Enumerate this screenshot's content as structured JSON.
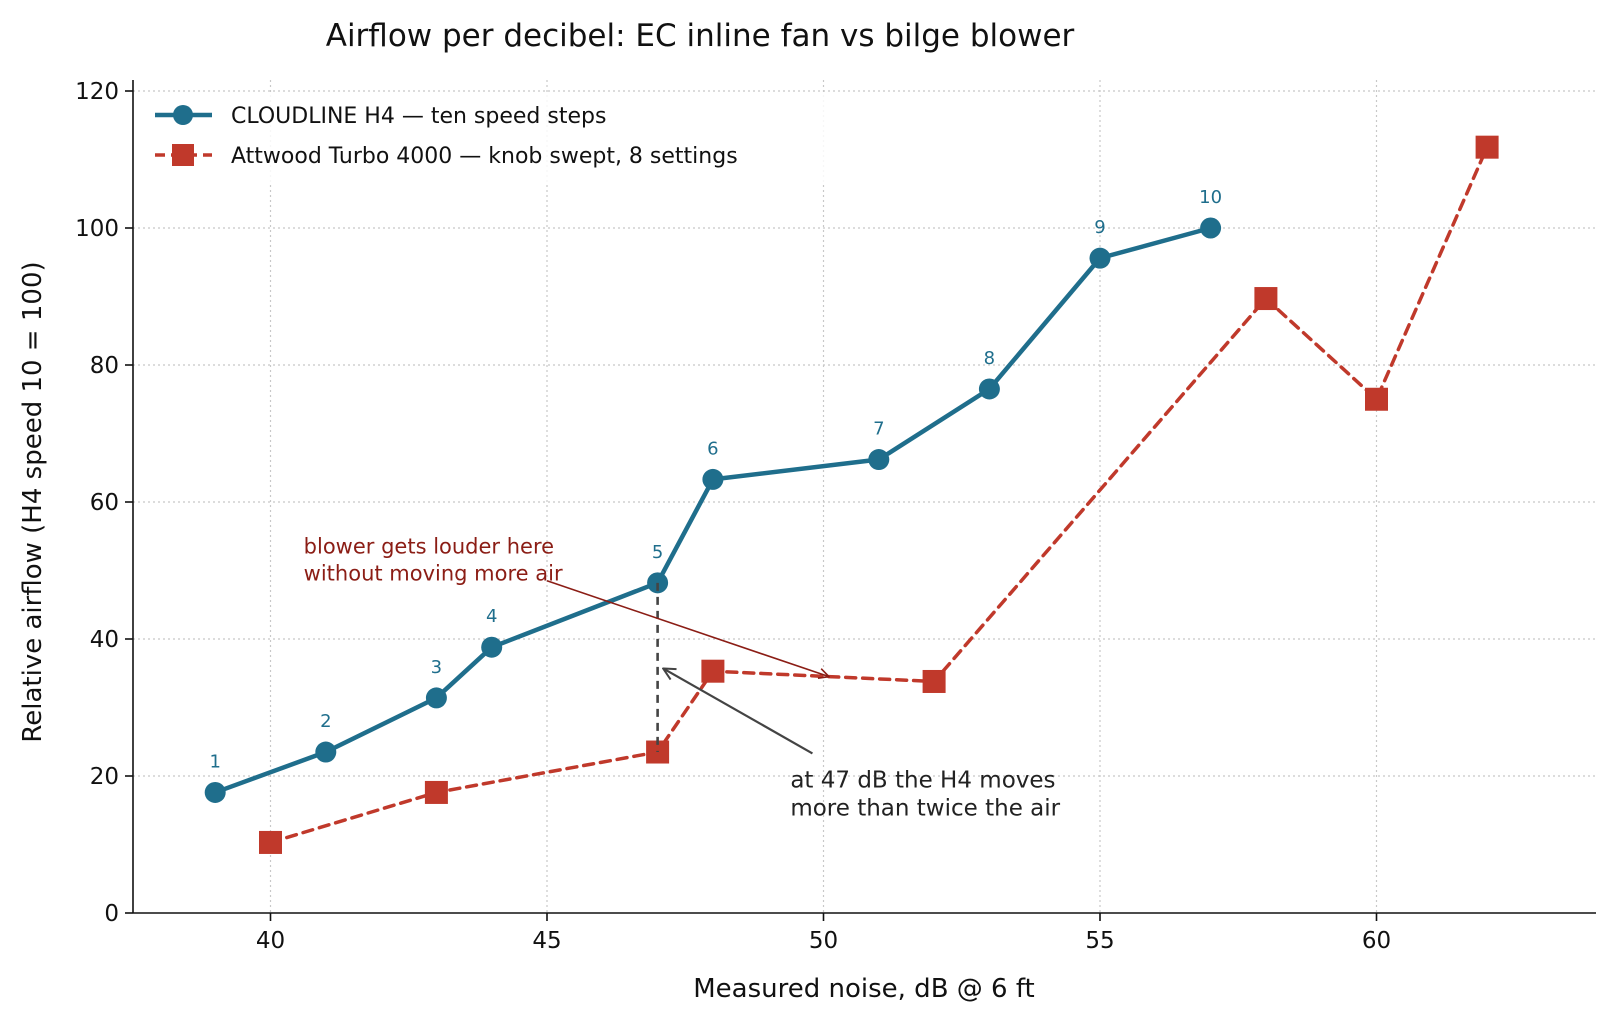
{
  "chart_data": {
    "type": "line",
    "title": "Airflow per decibel: EC inline fan vs bilge blower",
    "xlabel": "Measured noise, dB @ 6 ft",
    "ylabel": "Relative airflow  (H4 speed 10 = 100)",
    "xlim": [
      37.5,
      64
    ],
    "ylim": [
      0,
      122
    ],
    "x_ticks": [
      40,
      45,
      50,
      55,
      60
    ],
    "y_ticks": [
      0,
      20,
      40,
      60,
      80,
      100,
      120
    ],
    "grid": true,
    "legend_position": "top-left",
    "series": [
      {
        "name": "CLOUDLINE H4 — ten speed steps",
        "color": "#1f6e8c",
        "marker": "circle",
        "line_style": "solid",
        "x": [
          39,
          41,
          43,
          44,
          47,
          48,
          51,
          53,
          55,
          57
        ],
        "y": [
          17.6,
          23.5,
          31.4,
          38.8,
          48.2,
          63.3,
          66.2,
          76.5,
          95.6,
          100
        ],
        "point_labels": [
          "1",
          "2",
          "3",
          "4",
          "5",
          "6",
          "7",
          "8",
          "9",
          "10"
        ]
      },
      {
        "name": "Attwood Turbo 4000 — knob swept, 8 settings",
        "color": "#c0392b",
        "marker": "square",
        "line_style": "dashed",
        "x": [
          40,
          43,
          47,
          48,
          52,
          58,
          60,
          62
        ],
        "y": [
          10.3,
          17.6,
          23.5,
          35.3,
          33.8,
          89.7,
          75.0,
          111.8
        ]
      }
    ],
    "annotations": [
      {
        "id": "blower",
        "lines": [
          "blower gets louder here",
          "without moving more air"
        ],
        "text_x": 40.6,
        "text_y": 52.5,
        "arrow_from": [
          45,
          48.5
        ],
        "arrow_to": [
          50.1,
          34.5
        ],
        "color": "#8b1d15"
      },
      {
        "id": "h4",
        "lines": [
          "at 47 dB the H4 moves",
          "more than twice the air"
        ],
        "text_x": 49.4,
        "text_y": 18.3,
        "arrow_from": [
          49.8,
          23.3
        ],
        "arrow_to": [
          47.1,
          35.7
        ],
        "color": "#444444"
      }
    ],
    "reference_line": {
      "x": 47,
      "y_from": 23.5,
      "y_to": 48.2
    }
  }
}
